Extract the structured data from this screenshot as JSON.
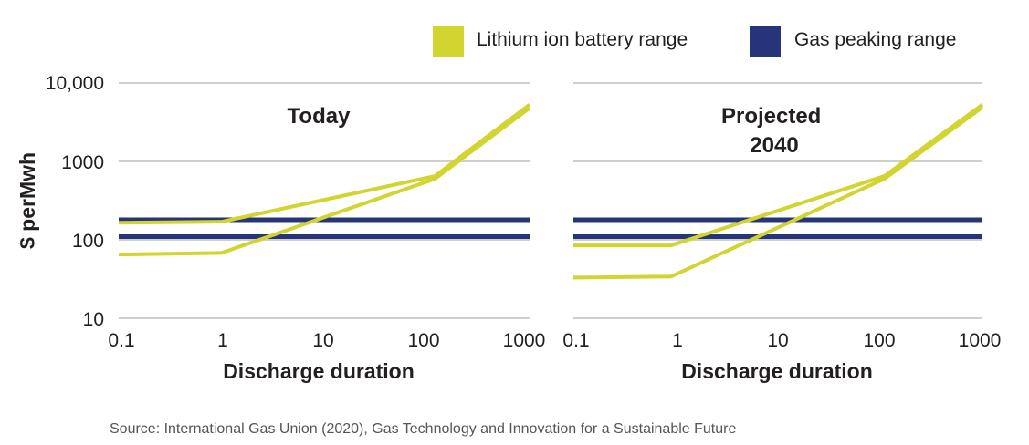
{
  "colors": {
    "battery": "#d2d430",
    "gas": "#263579",
    "grid": "#cfcfcf",
    "text": "#231f20"
  },
  "legend": [
    {
      "label": "Lithium ion battery range",
      "color": "#d2d430"
    },
    {
      "label": "Gas peaking range",
      "color": "#263579"
    }
  ],
  "ylabel": "$ perMwh",
  "source": "Source: International Gas Union (2020), Gas Technology and Innovation for a Sustainable Future",
  "chart_data": [
    {
      "type": "line",
      "title": "Today",
      "xlabel": "Discharge duration",
      "ylabel": "$ perMwh",
      "x_scale": "log",
      "y_scale": "log",
      "xlim": [
        0.1,
        1000
      ],
      "ylim": [
        10,
        10000
      ],
      "x_ticks": [
        "0.1",
        "1",
        "10",
        "100",
        "1000"
      ],
      "y_ticks": [
        "10,000",
        "1000",
        "100",
        "10"
      ],
      "grid": "horizontal",
      "series": [
        {
          "name": "Lithium ion battery range",
          "color": "#d2d430",
          "x": [
            0.1,
            1,
            120,
            1000
          ],
          "y": [
            165,
            170,
            650,
            5300
          ]
        },
        {
          "name": "Lithium ion battery range",
          "color": "#d2d430",
          "x": [
            0.1,
            1,
            120,
            1000
          ],
          "y": [
            65,
            68,
            600,
            4800
          ]
        },
        {
          "name": "Gas peaking range",
          "color": "#263579",
          "x": [
            0.1,
            1000
          ],
          "y": [
            180,
            180
          ]
        },
        {
          "name": "Gas peaking range",
          "color": "#263579",
          "x": [
            0.1,
            1000
          ],
          "y": [
            110,
            110
          ]
        }
      ]
    },
    {
      "type": "line",
      "title": "Projected 2040",
      "title_lines": [
        "Projected",
        "2040"
      ],
      "xlabel": "Discharge duration",
      "x_scale": "log",
      "y_scale": "log",
      "xlim": [
        0.1,
        1000
      ],
      "ylim": [
        10,
        10000
      ],
      "x_ticks": [
        "0.1",
        "1",
        "10",
        "100",
        "1000"
      ],
      "grid": "horizontal",
      "series": [
        {
          "name": "Lithium ion battery range",
          "color": "#d2d430",
          "x": [
            0.1,
            0.9,
            110,
            1000
          ],
          "y": [
            85,
            85,
            650,
            5300
          ]
        },
        {
          "name": "Lithium ion battery range",
          "color": "#d2d430",
          "x": [
            0.1,
            0.9,
            110,
            1000
          ],
          "y": [
            33,
            34,
            600,
            4900
          ]
        },
        {
          "name": "Gas peaking range",
          "color": "#263579",
          "x": [
            0.1,
            1000
          ],
          "y": [
            180,
            180
          ]
        },
        {
          "name": "Gas peaking range",
          "color": "#263579",
          "x": [
            0.1,
            1000
          ],
          "y": [
            110,
            110
          ]
        }
      ]
    }
  ]
}
